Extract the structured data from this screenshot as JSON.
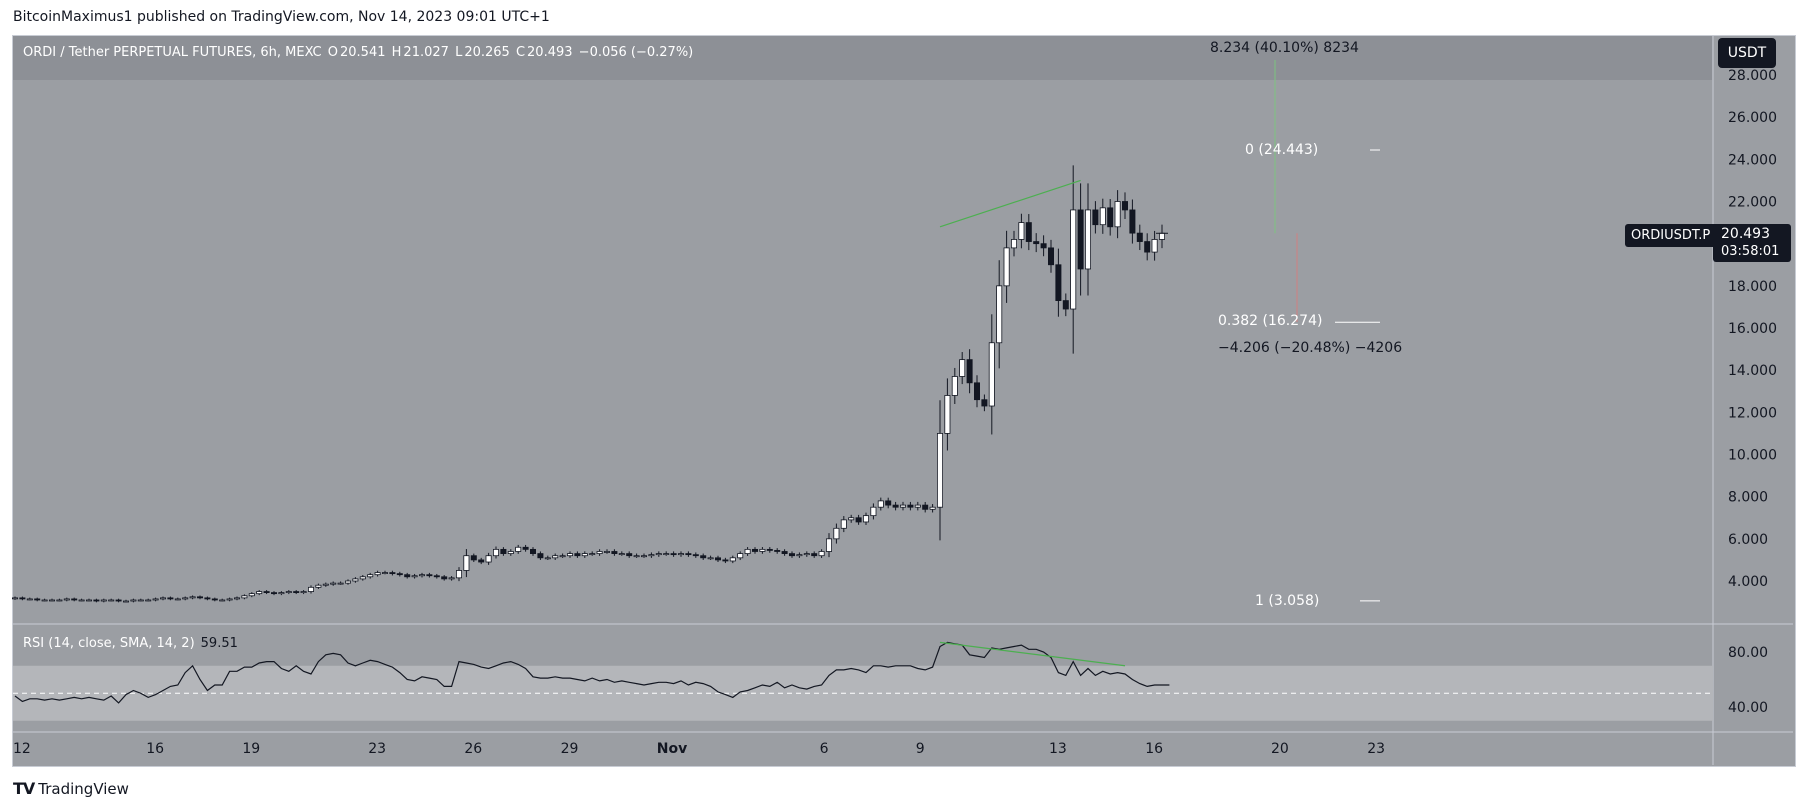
{
  "publish_line": "BitcoinMaximus1 published on TradingView.com, Nov 14, 2023 09:01 UTC+1",
  "symbol": {
    "title": "ORDI / Tether PERPETUAL FUTURES, 6h, MEXC",
    "o_label": "O",
    "o_value": "20.541",
    "h_label": "H",
    "h_value": "21.027",
    "l_label": "L",
    "l_value": "20.265",
    "c_label": "C",
    "c_value": "20.493",
    "change": "−0.056 (−0.27%)"
  },
  "quote_currency": "USDT",
  "price_badge": {
    "ticker": "ORDIUSDT.P",
    "price": "20.493",
    "countdown": "03:58:01"
  },
  "annotations": {
    "measure_up": "8.234 (40.10%) 8234",
    "measure_down": "−4.206 (−20.48%) −4206",
    "fib_0": "0 (24.443)",
    "fib_0382": "0.382 (16.274)",
    "fib_1": "1 (3.058)"
  },
  "rsi": {
    "title": "RSI (14, close, SMA, 14, 2)",
    "value": "59.51"
  },
  "brand": "TradingView",
  "colors": {
    "background": "#9b9ea3",
    "band": "#8d9096",
    "rsi_band": "#b4b6ba",
    "trend": "#4caf50",
    "candle_up": "#ffffff",
    "candle_down": "#131722"
  },
  "chart_data": [
    {
      "type": "candlestick",
      "title": "ORDI / Tether PERPETUAL FUTURES, 6h, MEXC",
      "ylim": [
        2.0,
        28.0
      ],
      "y_ticks": [
        "4.000",
        "6.000",
        "8.000",
        "10.000",
        "12.000",
        "14.000",
        "16.000",
        "18.000",
        "20.000",
        "22.000",
        "24.000",
        "26.000",
        "28.000"
      ],
      "x_ticks": [
        "12",
        "16",
        "19",
        "23",
        "26",
        "29",
        "Nov",
        "6",
        "9",
        "13",
        "16",
        "20",
        "23"
      ],
      "closes": [
        3.2,
        3.15,
        3.15,
        3.1,
        3.1,
        3.1,
        3.1,
        3.15,
        3.1,
        3.1,
        3.1,
        3.05,
        3.1,
        3.1,
        3.05,
        3.05,
        3.1,
        3.1,
        3.1,
        3.15,
        3.2,
        3.15,
        3.15,
        3.2,
        3.25,
        3.2,
        3.15,
        3.1,
        3.1,
        3.15,
        3.2,
        3.3,
        3.4,
        3.5,
        3.45,
        3.4,
        3.45,
        3.5,
        3.45,
        3.5,
        3.7,
        3.8,
        3.85,
        3.9,
        3.9,
        4.0,
        4.1,
        4.2,
        4.3,
        4.4,
        4.4,
        4.35,
        4.3,
        4.2,
        4.25,
        4.3,
        4.25,
        4.2,
        4.1,
        4.15,
        4.5,
        5.2,
        5.0,
        4.9,
        5.2,
        5.5,
        5.3,
        5.4,
        5.6,
        5.5,
        5.3,
        5.1,
        5.1,
        5.2,
        5.2,
        5.3,
        5.2,
        5.3,
        5.3,
        5.4,
        5.4,
        5.3,
        5.3,
        5.2,
        5.2,
        5.2,
        5.25,
        5.3,
        5.3,
        5.25,
        5.3,
        5.25,
        5.2,
        5.1,
        5.1,
        5.0,
        4.95,
        5.1,
        5.3,
        5.5,
        5.4,
        5.5,
        5.45,
        5.4,
        5.3,
        5.2,
        5.25,
        5.3,
        5.2,
        5.4,
        6.0,
        6.5,
        6.9,
        7.0,
        6.8,
        7.1,
        7.5,
        7.8,
        7.6,
        7.5,
        7.6,
        7.5,
        7.6,
        7.4,
        7.5,
        11.0,
        12.8,
        13.7,
        14.5,
        13.4,
        12.6,
        12.3,
        15.3,
        18.0,
        19.8,
        20.2,
        21.0,
        20.1,
        20.0,
        19.8,
        19.0,
        17.3,
        16.9,
        21.6,
        18.8,
        21.6,
        20.9,
        21.7,
        20.8,
        22.0,
        21.6,
        20.5,
        20.1,
        19.6,
        20.2,
        20.493
      ],
      "trendline_price": [
        [
          125,
          20.8
        ],
        [
          144,
          23.0
        ]
      ],
      "fib_levels": [
        {
          "ratio": "0",
          "price": 24.443
        },
        {
          "ratio": "0.382",
          "price": 16.274
        },
        {
          "ratio": "1",
          "price": 3.058
        }
      ],
      "measure_up": {
        "from": 20.493,
        "to": 28.727,
        "label": "8.234 (40.10%) 8234"
      },
      "measure_down": {
        "from": 20.493,
        "to": 16.287,
        "label": "−4.206 (−20.48%) −4206"
      }
    },
    {
      "type": "line",
      "title": "RSI (14, close, SMA, 14, 2)",
      "ylim": [
        30,
        95
      ],
      "y_ticks": [
        "40.00",
        "80.00"
      ],
      "band": [
        30,
        70
      ],
      "midline": 50,
      "values": [
        48,
        44,
        46,
        46,
        45,
        46,
        45,
        46,
        47,
        46,
        47,
        46,
        45,
        48,
        43,
        49,
        52,
        50,
        47,
        49,
        52,
        55,
        56,
        65,
        70,
        60,
        52,
        56,
        56,
        66,
        66,
        69,
        69,
        72,
        73,
        73,
        68,
        66,
        70,
        66,
        64,
        73,
        78,
        79,
        78,
        72,
        70,
        72,
        74,
        73,
        71,
        69,
        65,
        60,
        59,
        62,
        61,
        60,
        55,
        55,
        73,
        72,
        71,
        69,
        68,
        70,
        72,
        73,
        71,
        68,
        62,
        61,
        61,
        62,
        61,
        61,
        60,
        59,
        61,
        59,
        60,
        58,
        59,
        58,
        57,
        56,
        57,
        58,
        58,
        57,
        59,
        56,
        58,
        57,
        55,
        51,
        49,
        47,
        51,
        52,
        54,
        56,
        55,
        58,
        54,
        56,
        54,
        53,
        55,
        56,
        63,
        67,
        67,
        68,
        67,
        65,
        70,
        70,
        69,
        70,
        70,
        70,
        68,
        67,
        69,
        84,
        87,
        86,
        85,
        78,
        77,
        76,
        83,
        82,
        83,
        84,
        85,
        82,
        82,
        80,
        76,
        65,
        63,
        73,
        63,
        68,
        63,
        66,
        64,
        65,
        64,
        60,
        57,
        55,
        56,
        56,
        56
      ],
      "trendline_rsi": [
        [
          125,
          87
        ],
        [
          150,
          70
        ]
      ]
    }
  ]
}
